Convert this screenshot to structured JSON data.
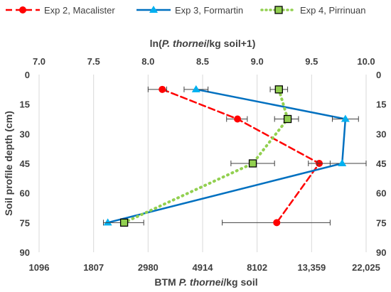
{
  "chart_data": {
    "type": "line",
    "title": "",
    "top_axis": {
      "label_prefix": "ln(",
      "label_italic": "P. thornei",
      "label_suffix": "/kg soil+1)",
      "range": [
        7.0,
        10.0
      ],
      "ticks": [
        "7.0",
        "7.5",
        "8.0",
        "8.5",
        "9.0",
        "9.5",
        "10.0"
      ]
    },
    "bottom_axis": {
      "label_prefix": "BTM ",
      "label_italic": "P. thornei",
      "label_suffix": "/kg soil",
      "ticks": [
        "1096",
        "1807",
        "2980",
        "4914",
        "8102",
        "13,359",
        "22,025"
      ]
    },
    "y_axis": {
      "label": "Soil profile depth (cm)",
      "range": [
        0,
        90
      ],
      "ticks": [
        "0",
        "15",
        "30",
        "45",
        "60",
        "75",
        "90"
      ],
      "reversed": true
    },
    "grid": "vertical",
    "legend_position": "top",
    "series": [
      {
        "name": "Exp 2, Macalister",
        "color": "#ff0000",
        "line_style": "dashed",
        "marker": "circle",
        "points": [
          {
            "x": 8.13,
            "depth": 7.5,
            "err_lo": 8.0,
            "err_hi": 8.17
          },
          {
            "x": 8.82,
            "depth": 22.5,
            "err_lo": 8.72,
            "err_hi": 8.91
          },
          {
            "x": 9.57,
            "depth": 45,
            "err_lo": 9.47,
            "err_hi": 9.67
          },
          {
            "x": 9.18,
            "depth": 75,
            "err_lo": 8.68,
            "err_hi": 9.67
          }
        ]
      },
      {
        "name": "Exp 3, Formartin",
        "color": "#0070c0",
        "line_style": "solid",
        "marker": "triangle",
        "marker_color": "#00b0f0",
        "points": [
          {
            "x": 8.44,
            "depth": 7.5,
            "err_lo": 8.33,
            "err_hi": 8.55
          },
          {
            "x": 9.81,
            "depth": 22.5,
            "err_lo": 9.69,
            "err_hi": 9.93
          },
          {
            "x": 9.78,
            "depth": 45,
            "err_lo": 9.55,
            "err_hi": 10.0
          },
          {
            "x": 7.63,
            "depth": 75,
            "err_lo": 7.63,
            "err_hi": 7.63
          }
        ]
      },
      {
        "name": "Exp 4, Pirrinuan",
        "color": "#92d050",
        "line_style": "dotted",
        "marker": "square",
        "points": [
          {
            "x": 9.2,
            "depth": 7.5,
            "err_lo": 9.12,
            "err_hi": 9.28
          },
          {
            "x": 9.28,
            "depth": 22.5,
            "err_lo": 9.16,
            "err_hi": 9.38
          },
          {
            "x": 8.96,
            "depth": 45,
            "err_lo": 8.76,
            "err_hi": 9.16
          },
          {
            "x": 7.78,
            "depth": 75,
            "err_lo": 7.59,
            "err_hi": 7.96
          }
        ]
      }
    ]
  }
}
